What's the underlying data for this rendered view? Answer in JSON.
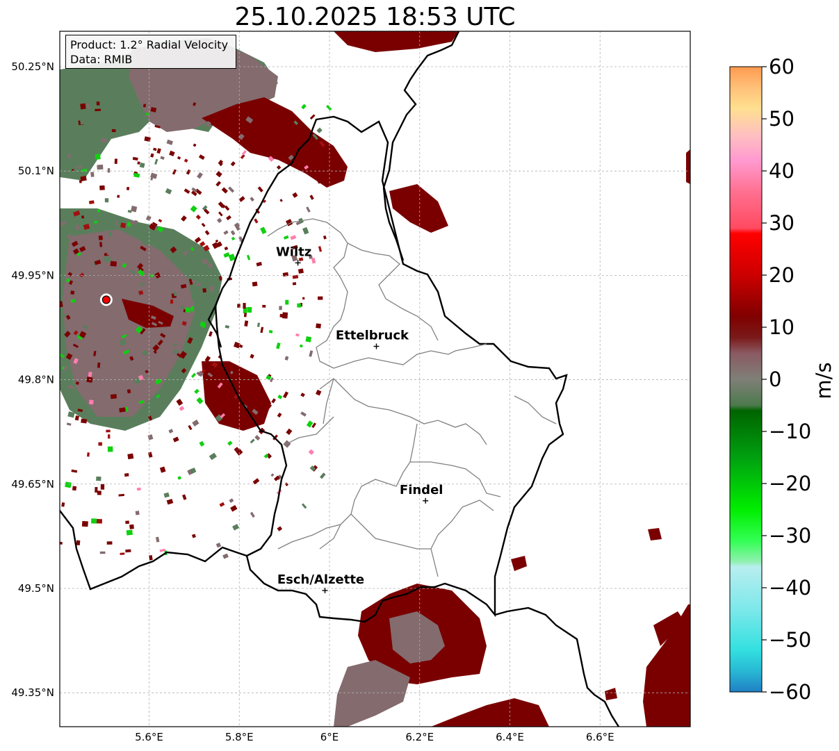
{
  "title": "25.10.2025 18:53 UTC",
  "info": {
    "product": "Product: 1.2° Radial Velocity",
    "data": "Data: RMIB"
  },
  "map": {
    "lon_range": [
      5.4,
      6.8
    ],
    "lat_range": [
      49.28,
      50.3
    ],
    "lon_ticks": [
      {
        "v": 5.6,
        "label": "5.6°E"
      },
      {
        "v": 5.8,
        "label": "5.8°E"
      },
      {
        "v": 6.0,
        "label": "6°E"
      },
      {
        "v": 6.2,
        "label": "6.2°E"
      },
      {
        "v": 6.4,
        "label": "6.4°E"
      },
      {
        "v": 6.6,
        "label": "6.6°E"
      }
    ],
    "lat_ticks": [
      {
        "v": 50.25,
        "label": "50.25°N"
      },
      {
        "v": 50.1,
        "label": "50.1°N"
      },
      {
        "v": 49.95,
        "label": "49.95°N"
      },
      {
        "v": 49.8,
        "label": "49.8°N"
      },
      {
        "v": 49.65,
        "label": "49.65°N"
      },
      {
        "v": 49.5,
        "label": "49.5°N"
      },
      {
        "v": 49.35,
        "label": "49.35°N"
      }
    ],
    "grid": true,
    "radar_site": {
      "lon": 5.505,
      "lat": 49.915,
      "color": "#ee0000"
    },
    "cities": [
      {
        "name": "Wiltz",
        "lon": 5.93,
        "lat": 49.968
      },
      {
        "name": "Ettelbruck",
        "lon": 6.104,
        "lat": 49.848
      },
      {
        "name": "Findel",
        "lon": 6.213,
        "lat": 49.626
      },
      {
        "name": "Esch/Alzette",
        "lon": 5.99,
        "lat": 49.497
      }
    ]
  },
  "colorbar": {
    "label": "m/s",
    "min": -60,
    "max": 60,
    "ticks": [
      {
        "v": 60,
        "label": "60"
      },
      {
        "v": 50,
        "label": "50"
      },
      {
        "v": 40,
        "label": "40"
      },
      {
        "v": 30,
        "label": "30"
      },
      {
        "v": 20,
        "label": "20"
      },
      {
        "v": 10,
        "label": "10"
      },
      {
        "v": 0,
        "label": "0"
      },
      {
        "v": -10,
        "label": "−10"
      },
      {
        "v": -20,
        "label": "−20"
      },
      {
        "v": -30,
        "label": "−30"
      },
      {
        "v": -40,
        "label": "−40"
      },
      {
        "v": -50,
        "label": "−50"
      },
      {
        "v": -60,
        "label": "−60"
      }
    ],
    "stops": [
      {
        "v": -60,
        "color": "#1f7fc4"
      },
      {
        "v": -56,
        "color": "#28b8d4"
      },
      {
        "v": -52,
        "color": "#33e0e0"
      },
      {
        "v": -44,
        "color": "#7ee8ea"
      },
      {
        "v": -36,
        "color": "#b8eef0"
      },
      {
        "v": -35,
        "color": "#90f0b0"
      },
      {
        "v": -31,
        "color": "#33ff55"
      },
      {
        "v": -25,
        "color": "#00ee00"
      },
      {
        "v": -15,
        "color": "#00a010"
      },
      {
        "v": -6,
        "color": "#006400"
      },
      {
        "v": -5,
        "color": "#4c7a4c"
      },
      {
        "v": 0,
        "color": "#7f7f77"
      },
      {
        "v": 5,
        "color": "#8a5a62"
      },
      {
        "v": 8,
        "color": "#7a1a1a"
      },
      {
        "v": 12,
        "color": "#800000"
      },
      {
        "v": 20,
        "color": "#cc0000"
      },
      {
        "v": 28,
        "color": "#ff0000"
      },
      {
        "v": 29,
        "color": "#ff4a60"
      },
      {
        "v": 36,
        "color": "#ff7090"
      },
      {
        "v": 42,
        "color": "#ff9ad0"
      },
      {
        "v": 47,
        "color": "#ffc0c0"
      },
      {
        "v": 52,
        "color": "#ffe090"
      },
      {
        "v": 56,
        "color": "#ffc078"
      },
      {
        "v": 60,
        "color": "#ff9a50"
      }
    ]
  },
  "colors": {
    "neg_velocity": "#5a7e5c",
    "zero_velocity": "#836b6e",
    "pos_velocity": "#7a0000",
    "green_echo": "#10d010",
    "border": "#000000",
    "canton": "#808080"
  }
}
